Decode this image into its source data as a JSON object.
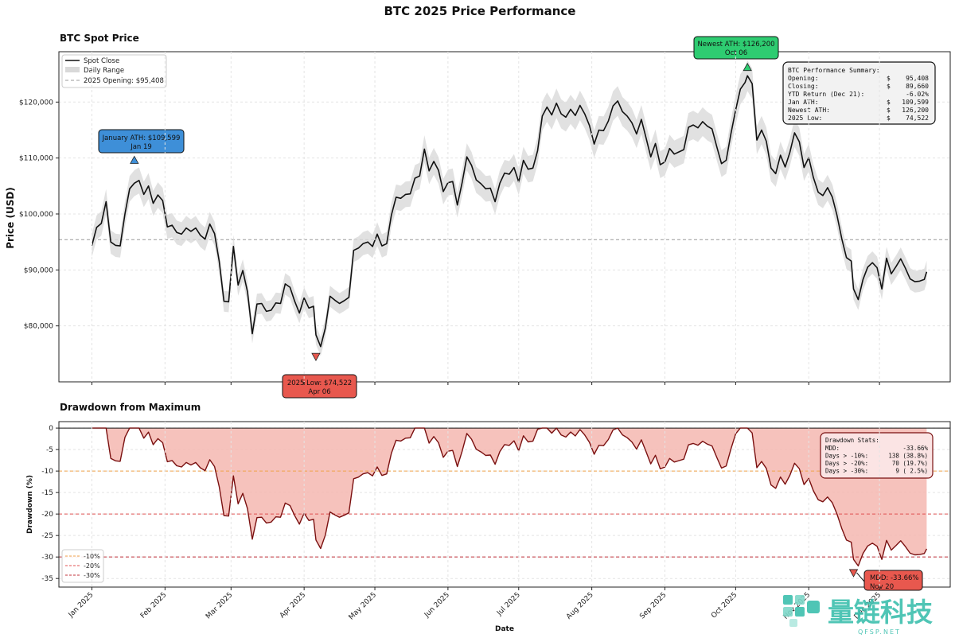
{
  "figure": {
    "title": "BTC 2025 Price Performance",
    "xlabel": "Date",
    "watermark": {
      "main": "量链科技",
      "sub": "QFSP.NET"
    }
  },
  "chart_data": [
    {
      "type": "line",
      "title": "BTC Spot Price",
      "ylabel": "Price (USD)",
      "ylim": [
        70000,
        129000
      ],
      "yticks": [
        80000,
        90000,
        100000,
        110000,
        120000
      ],
      "ytick_labels": [
        "$80,000",
        "$90,000",
        "$100,000",
        "$110,000",
        "$120,000"
      ],
      "x_range": [
        "2024-12-18",
        "2025-12-31"
      ],
      "grid": true,
      "legend_position": "top-left",
      "legend": [
        "Spot Close",
        "Daily Range",
        "2025 Opening: $95,408"
      ],
      "opening_price": 95408,
      "series": [
        {
          "name": "Spot Close",
          "color": "#111111",
          "points": [
            [
              "2025-01-01",
              94400
            ],
            [
              "2025-01-03",
              97600
            ],
            [
              "2025-01-05",
              98300
            ],
            [
              "2025-01-07",
              102200
            ],
            [
              "2025-01-09",
              95000
            ],
            [
              "2025-01-11",
              94400
            ],
            [
              "2025-01-13",
              94300
            ],
            [
              "2025-01-15",
              100000
            ],
            [
              "2025-01-17",
              104500
            ],
            [
              "2025-01-19",
              105500
            ],
            [
              "2025-01-21",
              106000
            ],
            [
              "2025-01-23",
              103500
            ],
            [
              "2025-01-25",
              105000
            ],
            [
              "2025-01-27",
              101900
            ],
            [
              "2025-01-29",
              103400
            ],
            [
              "2025-01-31",
              102400
            ],
            [
              "2025-02-02",
              97700
            ],
            [
              "2025-02-04",
              98000
            ],
            [
              "2025-02-06",
              96700
            ],
            [
              "2025-02-08",
              96400
            ],
            [
              "2025-02-10",
              97500
            ],
            [
              "2025-02-12",
              96900
            ],
            [
              "2025-02-14",
              97500
            ],
            [
              "2025-02-16",
              96200
            ],
            [
              "2025-02-18",
              95500
            ],
            [
              "2025-02-20",
              98200
            ],
            [
              "2025-02-22",
              96500
            ],
            [
              "2025-02-24",
              91500
            ],
            [
              "2025-02-26",
              84400
            ],
            [
              "2025-02-28",
              84300
            ],
            [
              "2025-03-02",
              94200
            ],
            [
              "2025-03-04",
              87300
            ],
            [
              "2025-03-06",
              89900
            ],
            [
              "2025-03-08",
              86100
            ],
            [
              "2025-03-10",
              78600
            ],
            [
              "2025-03-12",
              83900
            ],
            [
              "2025-03-14",
              84000
            ],
            [
              "2025-03-16",
              82600
            ],
            [
              "2025-03-18",
              82800
            ],
            [
              "2025-03-20",
              84100
            ],
            [
              "2025-03-22",
              84000
            ],
            [
              "2025-03-24",
              87500
            ],
            [
              "2025-03-26",
              86900
            ],
            [
              "2025-03-28",
              84400
            ],
            [
              "2025-03-30",
              82300
            ],
            [
              "2025-04-01",
              85000
            ],
            [
              "2025-04-03",
              83200
            ],
            [
              "2025-04-05",
              83500
            ],
            [
              "2025-04-06",
              78400
            ],
            [
              "2025-04-08",
              76300
            ],
            [
              "2025-04-10",
              79600
            ],
            [
              "2025-04-12",
              85300
            ],
            [
              "2025-04-14",
              84600
            ],
            [
              "2025-04-16",
              84000
            ],
            [
              "2025-04-18",
              84500
            ],
            [
              "2025-04-20",
              85100
            ],
            [
              "2025-04-22",
              93500
            ],
            [
              "2025-04-24",
              93900
            ],
            [
              "2025-04-26",
              94700
            ],
            [
              "2025-04-28",
              95000
            ],
            [
              "2025-04-30",
              94200
            ],
            [
              "2025-05-02",
              96400
            ],
            [
              "2025-05-04",
              94300
            ],
            [
              "2025-05-06",
              94700
            ],
            [
              "2025-05-08",
              99800
            ],
            [
              "2025-05-10",
              103000
            ],
            [
              "2025-05-12",
              102800
            ],
            [
              "2025-05-14",
              103500
            ],
            [
              "2025-05-16",
              103600
            ],
            [
              "2025-05-18",
              106400
            ],
            [
              "2025-05-20",
              106800
            ],
            [
              "2025-05-22",
              111600
            ],
            [
              "2025-05-24",
              107700
            ],
            [
              "2025-05-26",
              109400
            ],
            [
              "2025-05-28",
              107800
            ],
            [
              "2025-05-30",
              104000
            ],
            [
              "2025-06-01",
              105600
            ],
            [
              "2025-06-03",
              105800
            ],
            [
              "2025-06-05",
              101600
            ],
            [
              "2025-06-07",
              105600
            ],
            [
              "2025-06-09",
              110200
            ],
            [
              "2025-06-11",
              108700
            ],
            [
              "2025-06-13",
              106100
            ],
            [
              "2025-06-15",
              105400
            ],
            [
              "2025-06-17",
              104500
            ],
            [
              "2025-06-19",
              104600
            ],
            [
              "2025-06-21",
              102200
            ],
            [
              "2025-06-23",
              105500
            ],
            [
              "2025-06-25",
              107300
            ],
            [
              "2025-06-27",
              107100
            ],
            [
              "2025-06-29",
              108300
            ],
            [
              "2025-07-01",
              105700
            ],
            [
              "2025-07-03",
              109600
            ],
            [
              "2025-07-05",
              108000
            ],
            [
              "2025-07-07",
              108200
            ],
            [
              "2025-07-09",
              111300
            ],
            [
              "2025-07-11",
              117500
            ],
            [
              "2025-07-13",
              119100
            ],
            [
              "2025-07-15",
              117700
            ],
            [
              "2025-07-17",
              119800
            ],
            [
              "2025-07-19",
              117900
            ],
            [
              "2025-07-21",
              117300
            ],
            [
              "2025-07-23",
              118700
            ],
            [
              "2025-07-25",
              117600
            ],
            [
              "2025-07-27",
              119400
            ],
            [
              "2025-07-29",
              117900
            ],
            [
              "2025-07-31",
              115800
            ],
            [
              "2025-08-02",
              112500
            ],
            [
              "2025-08-04",
              115000
            ],
            [
              "2025-08-06",
              114900
            ],
            [
              "2025-08-08",
              116600
            ],
            [
              "2025-08-10",
              119300
            ],
            [
              "2025-08-12",
              120200
            ],
            [
              "2025-08-14",
              118300
            ],
            [
              "2025-08-16",
              117500
            ],
            [
              "2025-08-18",
              116300
            ],
            [
              "2025-08-20",
              114300
            ],
            [
              "2025-08-22",
              116900
            ],
            [
              "2025-08-24",
              113600
            ],
            [
              "2025-08-26",
              110200
            ],
            [
              "2025-08-28",
              112600
            ],
            [
              "2025-08-30",
              108800
            ],
            [
              "2025-09-01",
              109300
            ],
            [
              "2025-09-03",
              111700
            ],
            [
              "2025-09-05",
              110700
            ],
            [
              "2025-09-07",
              111100
            ],
            [
              "2025-09-09",
              111500
            ],
            [
              "2025-09-11",
              115500
            ],
            [
              "2025-09-13",
              115900
            ],
            [
              "2025-09-15",
              115400
            ],
            [
              "2025-09-17",
              116500
            ],
            [
              "2025-09-19",
              115700
            ],
            [
              "2025-09-21",
              115200
            ],
            [
              "2025-09-23",
              112000
            ],
            [
              "2025-09-25",
              109000
            ],
            [
              "2025-09-27",
              109600
            ],
            [
              "2025-09-29",
              114300
            ],
            [
              "2025-10-01",
              118600
            ],
            [
              "2025-10-03",
              122300
            ],
            [
              "2025-10-05",
              123500
            ],
            [
              "2025-10-06",
              124700
            ],
            [
              "2025-10-08",
              123300
            ],
            [
              "2025-10-10",
              113200
            ],
            [
              "2025-10-12",
              115000
            ],
            [
              "2025-10-14",
              113000
            ],
            [
              "2025-10-16",
              108200
            ],
            [
              "2025-10-18",
              107200
            ],
            [
              "2025-10-20",
              110500
            ],
            [
              "2025-10-22",
              108400
            ],
            [
              "2025-10-24",
              111000
            ],
            [
              "2025-10-26",
              114500
            ],
            [
              "2025-10-28",
              112900
            ],
            [
              "2025-10-30",
              108300
            ],
            [
              "2025-11-01",
              110100
            ],
            [
              "2025-11-03",
              106500
            ],
            [
              "2025-11-05",
              103900
            ],
            [
              "2025-11-07",
              103300
            ],
            [
              "2025-11-09",
              104700
            ],
            [
              "2025-11-11",
              103000
            ],
            [
              "2025-11-13",
              99700
            ],
            [
              "2025-11-15",
              95600
            ],
            [
              "2025-11-17",
              92200
            ],
            [
              "2025-11-19",
              91600
            ],
            [
              "2025-11-20",
              86600
            ],
            [
              "2025-11-22",
              84700
            ],
            [
              "2025-11-24",
              88300
            ],
            [
              "2025-11-26",
              90500
            ],
            [
              "2025-11-28",
              91300
            ],
            [
              "2025-11-30",
              90400
            ],
            [
              "2025-12-02",
              86600
            ],
            [
              "2025-12-04",
              92100
            ],
            [
              "2025-12-06",
              89300
            ],
            [
              "2025-12-08",
              90600
            ],
            [
              "2025-12-10",
              92000
            ],
            [
              "2025-12-12",
              90300
            ],
            [
              "2025-12-14",
              88400
            ],
            [
              "2025-12-16",
              87900
            ],
            [
              "2025-12-18",
              88000
            ],
            [
              "2025-12-20",
              88300
            ],
            [
              "2025-12-21",
              89660
            ]
          ]
        }
      ],
      "range_pct": 0.022,
      "annotations": [
        {
          "label": "January ATH: $109,599",
          "date_label": "Jan 19",
          "date": "2025-01-19",
          "value": 109599,
          "marker": "up",
          "color": "#3e8fd8"
        },
        {
          "label": "2025 Low: $74,522",
          "date_label": "Apr 06",
          "date": "2025-04-06",
          "value": 74522,
          "marker": "down",
          "color": "#e8584e"
        },
        {
          "label": "Newest ATH: $126,200",
          "date_label": "Oct 06",
          "date": "2025-10-06",
          "value": 126200,
          "marker": "up",
          "color": "#2ecc71"
        }
      ],
      "summary_box": {
        "title": "BTC Performance Summary:",
        "rows": [
          {
            "k": "Opening:",
            "cur": "$",
            "v": "95,408"
          },
          {
            "k": "Closing:",
            "cur": "$",
            "v": "89,660"
          },
          {
            "k": "YTD Return (Dec 21):",
            "cur": "",
            "v": "-6.02%"
          },
          {
            "k": "Jan ATH:",
            "cur": "$",
            "v": "109,599"
          },
          {
            "k": "Newest ATH:",
            "cur": "$",
            "v": "126,200"
          },
          {
            "k": "2025 Low:",
            "cur": "$",
            "v": "74,522"
          }
        ]
      }
    },
    {
      "type": "area",
      "title": "Drawdown from Maximum",
      "ylabel": "Drawdown (%)",
      "ylim": [
        -37,
        1.5
      ],
      "yticks": [
        0,
        -5,
        -10,
        -15,
        -20,
        -25,
        -30,
        -35
      ],
      "grid": true,
      "legend_position": "bottom-left",
      "legend": [
        "-10%",
        "-20%",
        "-30%"
      ],
      "threshold_lines": [
        {
          "value": -10,
          "label": "-10%",
          "color": "#f0a24a"
        },
        {
          "value": -20,
          "label": "-20%",
          "color": "#e05050"
        },
        {
          "value": -30,
          "label": "-30%",
          "color": "#c0303a"
        }
      ],
      "mdd_annotation": {
        "label": "MDD: -33.66%",
        "date_label": "Nov 20",
        "date": "2025-11-20",
        "value": -33.66
      },
      "stats_box": {
        "title": "Drawdown Stats:",
        "rows": [
          {
            "k": "MDD:",
            "v": "-33.66%"
          },
          {
            "k": "Days > -10%:",
            "v": "138 (38.8%)"
          },
          {
            "k": "Days > -20%:",
            "v": "70 (19.7%)"
          },
          {
            "k": "Days > -30%:",
            "v": "9 ( 2.5%)"
          }
        ]
      }
    }
  ],
  "x_axis": {
    "ticks": [
      {
        "date": "2025-01-01",
        "label": "Jan 2025"
      },
      {
        "date": "2025-02-01",
        "label": "Feb 2025"
      },
      {
        "date": "2025-03-01",
        "label": "Mar 2025"
      },
      {
        "date": "2025-04-01",
        "label": "Apr 2025"
      },
      {
        "date": "2025-05-01",
        "label": "May 2025"
      },
      {
        "date": "2025-06-01",
        "label": "Jun 2025"
      },
      {
        "date": "2025-07-01",
        "label": "Jul 2025"
      },
      {
        "date": "2025-08-01",
        "label": "Aug 2025"
      },
      {
        "date": "2025-09-01",
        "label": "Sep 2025"
      },
      {
        "date": "2025-10-01",
        "label": "Oct 2025"
      },
      {
        "date": "2025-11-01",
        "label": "Nov 2025"
      },
      {
        "date": "2025-12-01",
        "label": "Dec 2025"
      }
    ]
  }
}
